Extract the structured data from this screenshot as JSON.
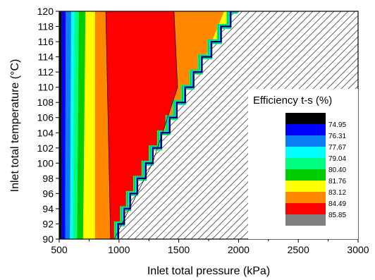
{
  "chart_data": {
    "type": "heatmap",
    "subtype": "filled-contour",
    "xlabel": "Inlet total pressure (kPa)",
    "ylabel": "Inlet total temperature (°C)",
    "xlim": [
      500,
      3000
    ],
    "ylim": [
      90,
      120
    ],
    "x_ticks": [
      "500",
      "1000",
      "1500",
      "2000",
      "2500",
      "3000"
    ],
    "y_ticks": [
      "90",
      "92",
      "94",
      "96",
      "98",
      "100",
      "102",
      "104",
      "106",
      "108",
      "110",
      "112",
      "114",
      "116",
      "118",
      "120"
    ],
    "grid": false,
    "legend_placement": "bottom-right",
    "legend": {
      "title": "Efficiency t-s (%)",
      "levels": [
        "74.95",
        "76.31",
        "77.67",
        "79.04",
        "80.40",
        "81.76",
        "83.12",
        "84.49",
        "85.85"
      ],
      "colors": [
        "#000000",
        "#0000ff",
        "#0a7df5",
        "#00ffff",
        "#00ff80",
        "#00cc00",
        "#ffff00",
        "#ff8800",
        "#ff0000",
        "#808080"
      ]
    },
    "hatched_region": "infeasible region right of the saturation boundary",
    "boundary_points": [
      {
        "T": 90,
        "p": 1000
      },
      {
        "T": 92,
        "p": 1050
      },
      {
        "T": 94,
        "p": 1100
      },
      {
        "T": 96,
        "p": 1160
      },
      {
        "T": 98,
        "p": 1230
      },
      {
        "T": 100,
        "p": 1290
      },
      {
        "T": 102,
        "p": 1360
      },
      {
        "T": 104,
        "p": 1430
      },
      {
        "T": 106,
        "p": 1490
      },
      {
        "T": 108,
        "p": 1560
      },
      {
        "T": 110,
        "p": 1630
      },
      {
        "T": 112,
        "p": 1700
      },
      {
        "T": 114,
        "p": 1780
      },
      {
        "T": 116,
        "p": 1860
      },
      {
        "T": 118,
        "p": 1940
      },
      {
        "T": 120,
        "p": 2010
      }
    ],
    "contour_bands": [
      {
        "band": "black",
        "p_at_90": 500,
        "p_at_120": 500
      },
      {
        "band": "blue",
        "p_at_90": 520,
        "p_at_120": 520
      },
      {
        "band": "azure",
        "p_at_90": 550,
        "p_at_120": 555
      },
      {
        "band": "cyan",
        "p_at_90": 590,
        "p_at_120": 600
      },
      {
        "band": "mint",
        "p_at_90": 615,
        "p_at_120": 630
      },
      {
        "band": "green",
        "p_at_90": 650,
        "p_at_120": 665
      },
      {
        "band": "yellow",
        "p_at_90": 700,
        "p_at_120": 720
      },
      {
        "band": "orange",
        "p_at_90": 800,
        "p_at_120": 800
      },
      {
        "band": "red",
        "p_at_90": 930,
        "p_at_120": 890
      }
    ],
    "red_right_edge": [
      {
        "T": 90,
        "p": 960
      },
      {
        "T": 100,
        "p": 1280
      },
      {
        "T": 110,
        "p": 1490
      },
      {
        "T": 120,
        "p": 1460
      }
    ],
    "orange_right_edge": [
      {
        "T": 90,
        "p": 975
      },
      {
        "T": 100,
        "p": 1300
      },
      {
        "T": 110,
        "p": 1600
      },
      {
        "T": 120,
        "p": 1780
      }
    ],
    "yellow_right_edge": [
      {
        "T": 110,
        "p": 1620
      },
      {
        "T": 120,
        "p": 1880
      }
    ]
  }
}
